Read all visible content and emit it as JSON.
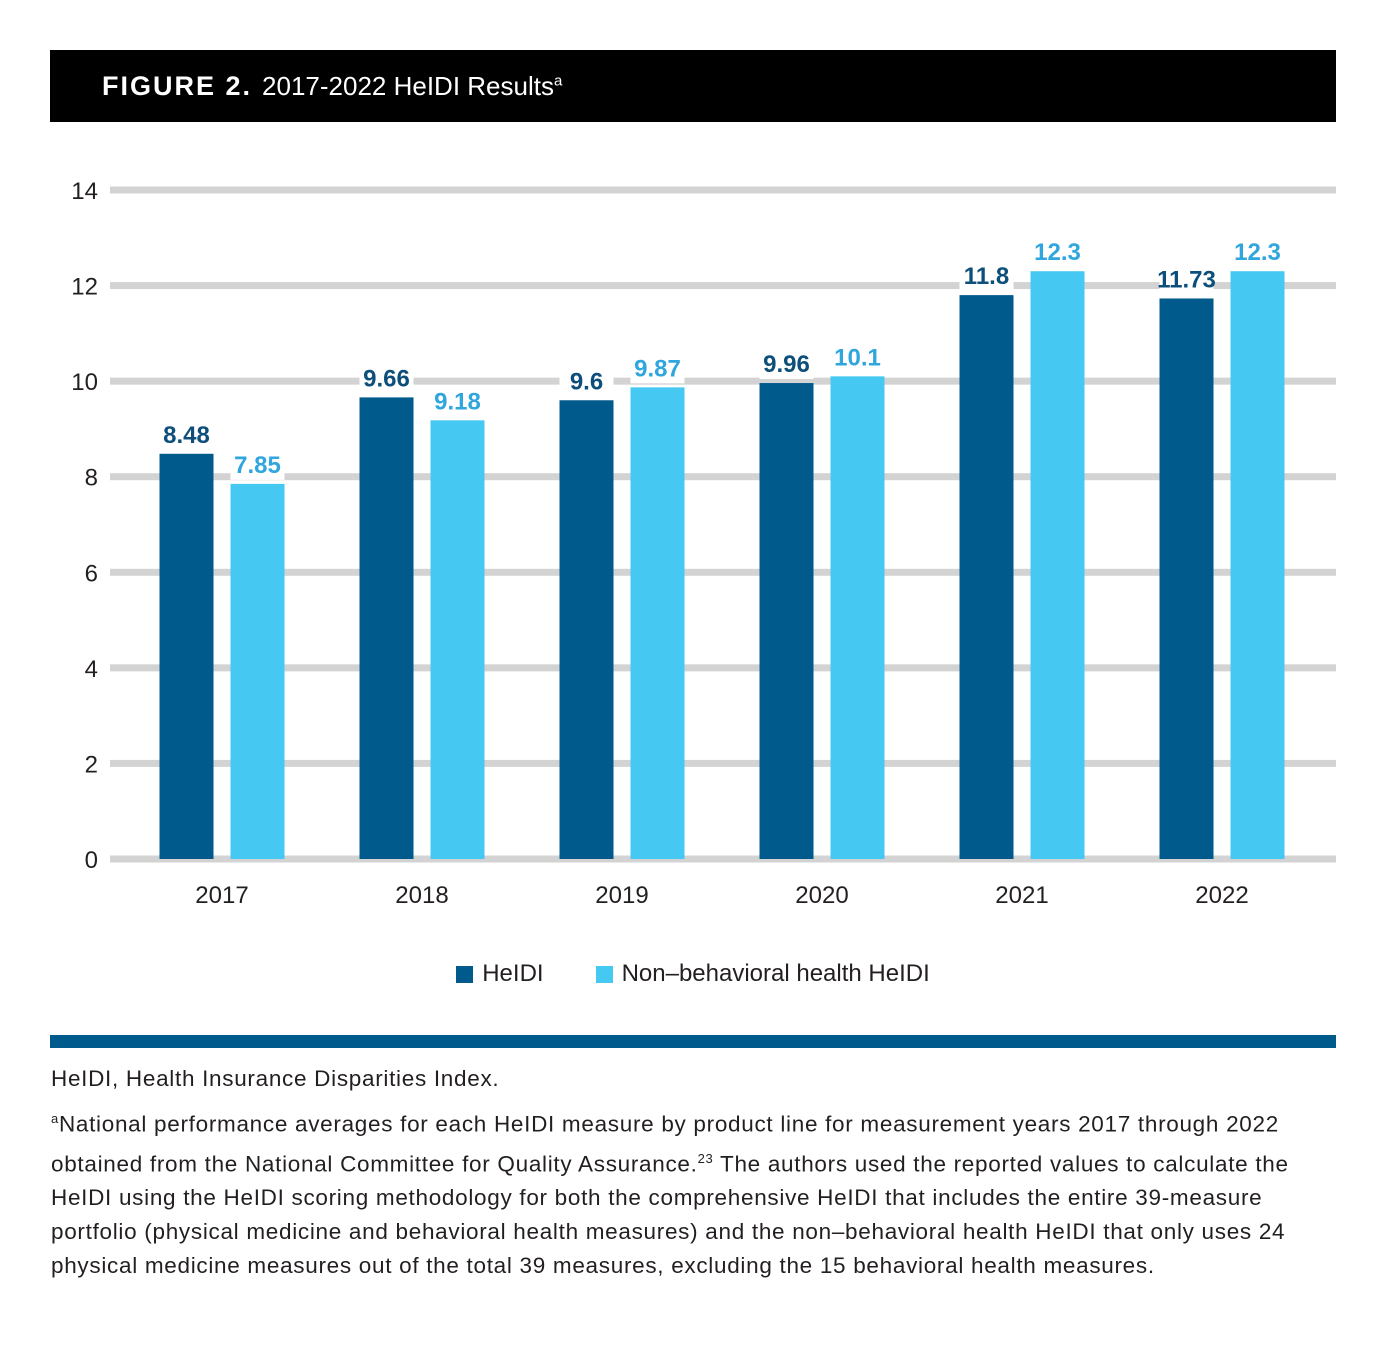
{
  "figure": {
    "label": "FIGURE 2.",
    "title": "2017-2022 HeIDI Results",
    "title_superscript": "a"
  },
  "colors": {
    "series_dark": "#005a8c",
    "series_light": "#45c8f2",
    "label_dark": "#0d4f7a",
    "label_light": "#2fa6dd",
    "grid": "#d3d3d3",
    "header_bg": "#000000",
    "rule": "#005a8c"
  },
  "chart_data": {
    "type": "bar",
    "categories": [
      "2017",
      "2018",
      "2019",
      "2020",
      "2021",
      "2022"
    ],
    "series": [
      {
        "name": "HeIDI",
        "values": [
          8.48,
          9.66,
          9.6,
          9.96,
          11.8,
          11.73
        ],
        "labels": [
          "8.48",
          "9.66",
          "9.6",
          "9.96",
          "11.8",
          "11.73"
        ]
      },
      {
        "name": "Non–behavioral health HeIDI",
        "values": [
          7.85,
          9.18,
          9.87,
          10.1,
          12.3,
          12.3
        ],
        "labels": [
          "7.85",
          "9.18",
          "9.87",
          "10.1",
          "12.3",
          "12.3"
        ]
      }
    ],
    "yticks": [
      "0",
      "2",
      "4",
      "6",
      "8",
      "10",
      "12",
      "14"
    ],
    "ylim": [
      0,
      14
    ],
    "grid": true,
    "legend_position": "bottom-center"
  },
  "legend": {
    "items": [
      "HeIDI",
      "Non–behavioral health HeIDI"
    ]
  },
  "notes": {
    "abbreviation": "HeIDI, Health Insurance Disparities Index.",
    "footnote_marker": "a",
    "footnote_part1": "National performance averages for each HeIDI measure by product line for measurement years 2017 through 2022 obtained from the National Committee for Quality Assurance.",
    "footnote_ref": "23",
    "footnote_part2": " The authors used the reported values to calculate the HeIDI using the HeIDI scoring methodology for both the comprehensive HeIDI that includes the entire 39-measure portfolio (physical medicine and behavioral health measures) and the non–behavioral health HeIDI that only uses 24 physical medicine measures out of the total 39 measures, excluding the 15 behavioral health measures."
  }
}
